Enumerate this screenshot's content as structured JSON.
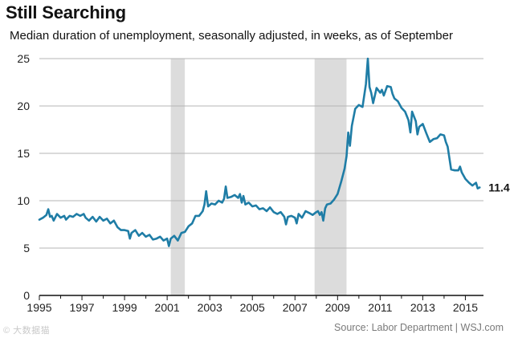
{
  "header": {
    "title": "Still Searching",
    "subtitle": "Median duration of unemployment, seasonally adjusted, in weeks, as of September"
  },
  "footer": {
    "source": "Source: Labor Department  |  WSJ.com",
    "watermark": "© 大数据猫"
  },
  "chart_data": {
    "type": "line",
    "title": "Still Searching",
    "subtitle": "Median duration of unemployment, seasonally adjusted, in weeks, as of September",
    "xlabel": "",
    "ylabel": "",
    "xlim": [
      1995,
      2015.85
    ],
    "ylim": [
      0,
      25
    ],
    "x_ticks": [
      1995,
      1997,
      1999,
      2001,
      2003,
      2005,
      2007,
      2009,
      2011,
      2013,
      2015
    ],
    "y_ticks": [
      0,
      5,
      10,
      15,
      20,
      25
    ],
    "grid": "horizontal",
    "line_color": "#1f7da6",
    "recession_color": "#dcdcdc",
    "recessions": [
      {
        "start": 2001.17,
        "end": 2001.83
      },
      {
        "start": 2007.92,
        "end": 2009.42
      }
    ],
    "end_label": "11.4",
    "series": [
      {
        "points": [
          [
            1995.0,
            8.0
          ],
          [
            1995.17,
            8.2
          ],
          [
            1995.33,
            8.5
          ],
          [
            1995.42,
            9.1
          ],
          [
            1995.5,
            8.3
          ],
          [
            1995.58,
            8.4
          ],
          [
            1995.67,
            7.9
          ],
          [
            1995.83,
            8.6
          ],
          [
            1996.0,
            8.2
          ],
          [
            1996.17,
            8.4
          ],
          [
            1996.25,
            8.0
          ],
          [
            1996.42,
            8.4
          ],
          [
            1996.58,
            8.3
          ],
          [
            1996.75,
            8.6
          ],
          [
            1996.92,
            8.4
          ],
          [
            1997.08,
            8.6
          ],
          [
            1997.17,
            8.2
          ],
          [
            1997.33,
            7.9
          ],
          [
            1997.5,
            8.3
          ],
          [
            1997.67,
            7.8
          ],
          [
            1997.83,
            8.3
          ],
          [
            1998.0,
            7.9
          ],
          [
            1998.17,
            8.1
          ],
          [
            1998.33,
            7.6
          ],
          [
            1998.5,
            7.9
          ],
          [
            1998.67,
            7.2
          ],
          [
            1998.83,
            6.9
          ],
          [
            1999.0,
            6.9
          ],
          [
            1999.17,
            6.8
          ],
          [
            1999.25,
            6.0
          ],
          [
            1999.33,
            6.6
          ],
          [
            1999.5,
            6.9
          ],
          [
            1999.67,
            6.3
          ],
          [
            1999.83,
            6.6
          ],
          [
            2000.0,
            6.2
          ],
          [
            2000.17,
            6.4
          ],
          [
            2000.33,
            5.9
          ],
          [
            2000.5,
            6.0
          ],
          [
            2000.67,
            6.2
          ],
          [
            2000.83,
            5.8
          ],
          [
            2001.0,
            6.0
          ],
          [
            2001.08,
            5.2
          ],
          [
            2001.17,
            6.0
          ],
          [
            2001.33,
            6.3
          ],
          [
            2001.5,
            5.8
          ],
          [
            2001.67,
            6.6
          ],
          [
            2001.83,
            6.7
          ],
          [
            2002.0,
            7.3
          ],
          [
            2002.17,
            7.6
          ],
          [
            2002.33,
            8.4
          ],
          [
            2002.5,
            8.4
          ],
          [
            2002.67,
            8.9
          ],
          [
            2002.75,
            9.6
          ],
          [
            2002.83,
            11.0
          ],
          [
            2002.92,
            9.4
          ],
          [
            2003.08,
            9.7
          ],
          [
            2003.25,
            9.6
          ],
          [
            2003.42,
            10.0
          ],
          [
            2003.58,
            9.8
          ],
          [
            2003.67,
            10.2
          ],
          [
            2003.75,
            11.5
          ],
          [
            2003.83,
            10.3
          ],
          [
            2004.0,
            10.4
          ],
          [
            2004.17,
            10.6
          ],
          [
            2004.33,
            10.3
          ],
          [
            2004.42,
            10.7
          ],
          [
            2004.5,
            9.8
          ],
          [
            2004.58,
            10.5
          ],
          [
            2004.67,
            9.6
          ],
          [
            2004.83,
            9.8
          ],
          [
            2005.0,
            9.4
          ],
          [
            2005.17,
            9.5
          ],
          [
            2005.33,
            9.1
          ],
          [
            2005.5,
            9.2
          ],
          [
            2005.67,
            8.9
          ],
          [
            2005.83,
            9.3
          ],
          [
            2006.0,
            8.8
          ],
          [
            2006.17,
            8.6
          ],
          [
            2006.33,
            8.8
          ],
          [
            2006.5,
            8.3
          ],
          [
            2006.58,
            7.5
          ],
          [
            2006.67,
            8.3
          ],
          [
            2006.83,
            8.4
          ],
          [
            2007.0,
            8.2
          ],
          [
            2007.08,
            7.6
          ],
          [
            2007.17,
            8.6
          ],
          [
            2007.33,
            8.2
          ],
          [
            2007.5,
            8.9
          ],
          [
            2007.67,
            8.7
          ],
          [
            2007.83,
            8.5
          ],
          [
            2008.0,
            8.8
          ],
          [
            2008.08,
            8.9
          ],
          [
            2008.17,
            8.5
          ],
          [
            2008.25,
            8.8
          ],
          [
            2008.33,
            7.9
          ],
          [
            2008.42,
            9.2
          ],
          [
            2008.5,
            9.6
          ],
          [
            2008.67,
            9.7
          ],
          [
            2008.83,
            10.1
          ],
          [
            2009.0,
            10.7
          ],
          [
            2009.17,
            12.0
          ],
          [
            2009.33,
            13.4
          ],
          [
            2009.42,
            14.7
          ],
          [
            2009.5,
            17.2
          ],
          [
            2009.58,
            15.8
          ],
          [
            2009.67,
            17.9
          ],
          [
            2009.83,
            19.7
          ],
          [
            2010.0,
            20.1
          ],
          [
            2010.17,
            19.9
          ],
          [
            2010.33,
            22.3
          ],
          [
            2010.42,
            25.0
          ],
          [
            2010.5,
            22.0
          ],
          [
            2010.58,
            21.4
          ],
          [
            2010.67,
            20.3
          ],
          [
            2010.83,
            21.9
          ],
          [
            2011.0,
            21.4
          ],
          [
            2011.08,
            21.7
          ],
          [
            2011.17,
            21.1
          ],
          [
            2011.33,
            22.1
          ],
          [
            2011.5,
            22.0
          ],
          [
            2011.58,
            21.3
          ],
          [
            2011.67,
            20.8
          ],
          [
            2011.83,
            20.5
          ],
          [
            2012.0,
            19.8
          ],
          [
            2012.17,
            19.4
          ],
          [
            2012.33,
            18.5
          ],
          [
            2012.42,
            17.2
          ],
          [
            2012.5,
            19.4
          ],
          [
            2012.67,
            18.4
          ],
          [
            2012.75,
            17.0
          ],
          [
            2012.83,
            17.8
          ],
          [
            2013.0,
            18.1
          ],
          [
            2013.17,
            17.1
          ],
          [
            2013.33,
            16.2
          ],
          [
            2013.5,
            16.5
          ],
          [
            2013.67,
            16.6
          ],
          [
            2013.83,
            17.0
          ],
          [
            2014.0,
            16.9
          ],
          [
            2014.08,
            16.2
          ],
          [
            2014.17,
            15.7
          ],
          [
            2014.33,
            13.3
          ],
          [
            2014.5,
            13.2
          ],
          [
            2014.67,
            13.2
          ],
          [
            2014.75,
            13.6
          ],
          [
            2014.83,
            13.0
          ],
          [
            2015.0,
            12.3
          ],
          [
            2015.17,
            11.9
          ],
          [
            2015.33,
            11.6
          ],
          [
            2015.5,
            11.9
          ],
          [
            2015.58,
            11.3
          ],
          [
            2015.67,
            11.4
          ]
        ]
      }
    ]
  }
}
